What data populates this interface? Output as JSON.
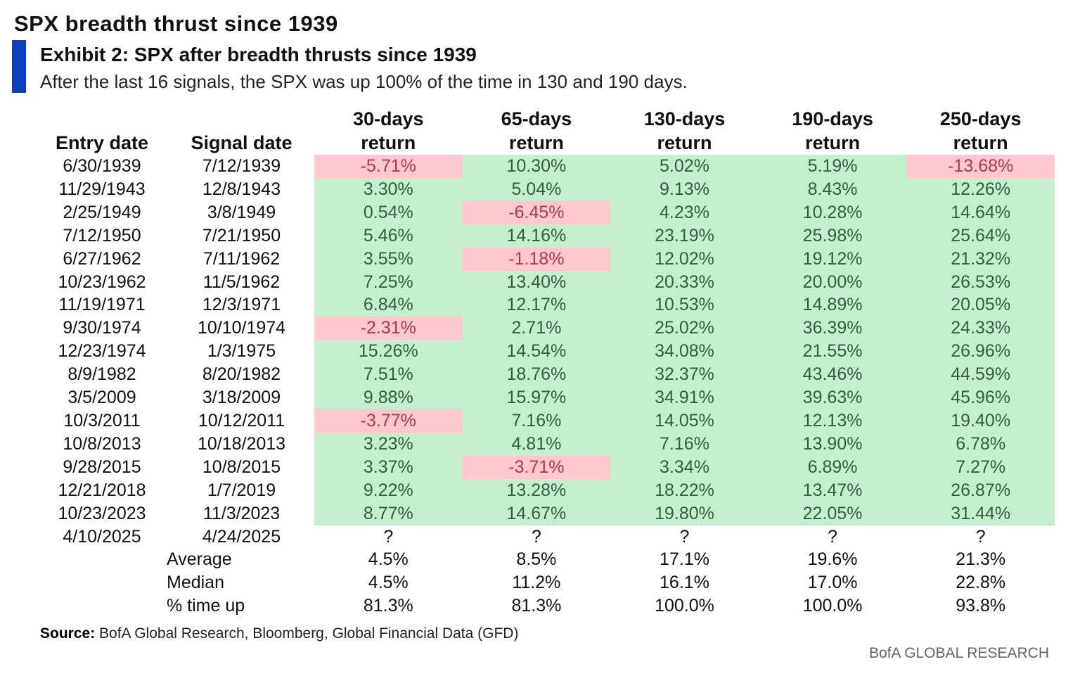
{
  "title": "SPX breadth thrust since 1939",
  "exhibit_title": "Exhibit 2: SPX after breadth thrusts since 1939",
  "subtitle": "After the last 16 signals, the SPX was up 100% of the time in 130 and 190 days.",
  "colors": {
    "accent_bar": "#0a3fbf",
    "positive_fill": "#c6efce",
    "negative_fill": "#ffc7ce"
  },
  "chart_data": {
    "type": "table",
    "columns": [
      [
        "",
        "Entry date"
      ],
      [
        "",
        "Signal date"
      ],
      [
        "30-days",
        "return"
      ],
      [
        "65-days",
        "return"
      ],
      [
        "130-days",
        "return"
      ],
      [
        "190-days",
        "return"
      ],
      [
        "250-days",
        "return"
      ]
    ],
    "rows": [
      [
        "6/30/1939",
        "7/12/1939",
        "-5.71%",
        "10.30%",
        "5.02%",
        "5.19%",
        "-13.68%"
      ],
      [
        "11/29/1943",
        "12/8/1943",
        "3.30%",
        "5.04%",
        "9.13%",
        "8.43%",
        "12.26%"
      ],
      [
        "2/25/1949",
        "3/8/1949",
        "0.54%",
        "-6.45%",
        "4.23%",
        "10.28%",
        "14.64%"
      ],
      [
        "7/12/1950",
        "7/21/1950",
        "5.46%",
        "14.16%",
        "23.19%",
        "25.98%",
        "25.64%"
      ],
      [
        "6/27/1962",
        "7/11/1962",
        "3.55%",
        "-1.18%",
        "12.02%",
        "19.12%",
        "21.32%"
      ],
      [
        "10/23/1962",
        "11/5/1962",
        "7.25%",
        "13.40%",
        "20.33%",
        "20.00%",
        "26.53%"
      ],
      [
        "11/19/1971",
        "12/3/1971",
        "6.84%",
        "12.17%",
        "10.53%",
        "14.89%",
        "20.05%"
      ],
      [
        "9/30/1974",
        "10/10/1974",
        "-2.31%",
        "2.71%",
        "25.02%",
        "36.39%",
        "24.33%"
      ],
      [
        "12/23/1974",
        "1/3/1975",
        "15.26%",
        "14.54%",
        "34.08%",
        "21.55%",
        "26.96%"
      ],
      [
        "8/9/1982",
        "8/20/1982",
        "7.51%",
        "18.76%",
        "32.37%",
        "43.46%",
        "44.59%"
      ],
      [
        "3/5/2009",
        "3/18/2009",
        "9.88%",
        "15.97%",
        "34.91%",
        "39.63%",
        "45.96%"
      ],
      [
        "10/3/2011",
        "10/12/2011",
        "-3.77%",
        "7.16%",
        "14.05%",
        "12.13%",
        "19.40%"
      ],
      [
        "10/8/2013",
        "10/18/2013",
        "3.23%",
        "4.81%",
        "7.16%",
        "13.90%",
        "6.78%"
      ],
      [
        "9/28/2015",
        "10/8/2015",
        "3.37%",
        "-3.71%",
        "3.34%",
        "6.89%",
        "7.27%"
      ],
      [
        "12/21/2018",
        "1/7/2019",
        "9.22%",
        "13.28%",
        "18.22%",
        "13.47%",
        "26.87%"
      ],
      [
        "10/23/2023",
        "11/3/2023",
        "8.77%",
        "14.67%",
        "19.80%",
        "22.05%",
        "31.44%"
      ],
      [
        "4/10/2025",
        "4/24/2025",
        "?",
        "?",
        "?",
        "?",
        "?"
      ]
    ],
    "summary": [
      {
        "label": "Average",
        "values": [
          "4.5%",
          "8.5%",
          "17.1%",
          "19.6%",
          "21.3%"
        ]
      },
      {
        "label": "Median",
        "values": [
          "4.5%",
          "11.2%",
          "16.1%",
          "17.0%",
          "22.8%"
        ]
      },
      {
        "label": "% time up",
        "values": [
          "81.3%",
          "81.3%",
          "100.0%",
          "100.0%",
          "93.8%"
        ]
      }
    ]
  },
  "source_label": "Source:",
  "source_text": " BofA Global Research, Bloomberg, Global Financial Data (GFD)",
  "brand": "BofA GLOBAL RESEARCH"
}
